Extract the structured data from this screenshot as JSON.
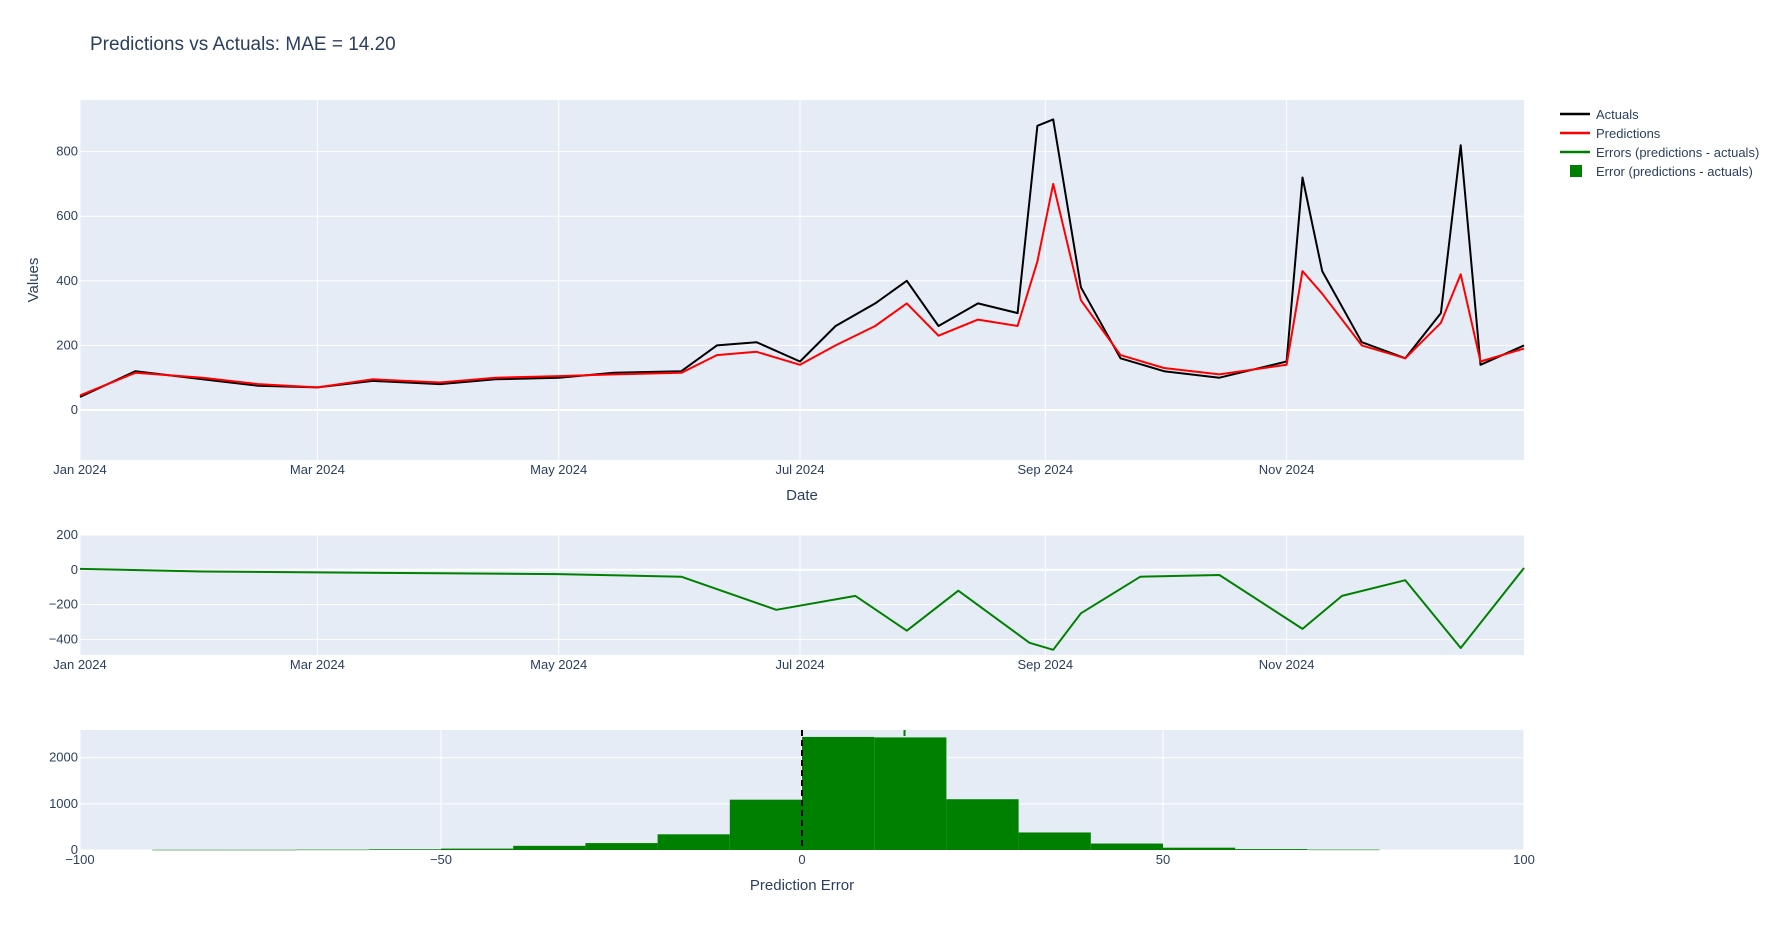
{
  "title": "Predictions vs Actuals: MAE = 14.20",
  "colors": {
    "actuals": "#000000",
    "predictions": "#ff0000",
    "errors": "#008000",
    "plot_bg": "#e5ecf6",
    "text": "#2a3f5f"
  },
  "legend": [
    {
      "label": "Actuals",
      "type": "line",
      "color": "#000000"
    },
    {
      "label": "Predictions",
      "type": "line",
      "color": "#ff0000"
    },
    {
      "label": "Errors (predictions - actuals)",
      "type": "line",
      "color": "#008000"
    },
    {
      "label": "Error (predictions - actuals)",
      "type": "square",
      "color": "#008000"
    }
  ],
  "chart_data": [
    {
      "type": "line",
      "xlabel": "Date",
      "ylabel": "Values",
      "x_range": [
        "2024-01-01",
        "2024-12-31"
      ],
      "x_ticks": [
        "Jan 2024",
        "Mar 2024",
        "May 2024",
        "Jul 2024",
        "Sep 2024",
        "Nov 2024"
      ],
      "x_tick_dates": [
        "2024-01-01",
        "2024-03-01",
        "2024-05-01",
        "2024-07-01",
        "2024-09-01",
        "2024-11-01"
      ],
      "ylim": [
        -155,
        960
      ],
      "y_ticks": [
        0,
        200,
        400,
        600,
        800
      ],
      "grid": true,
      "legend_position": "top-right",
      "series": [
        {
          "name": "Actuals",
          "x": [
            "2024-01-01",
            "2024-01-15",
            "2024-02-01",
            "2024-02-15",
            "2024-03-01",
            "2024-03-15",
            "2024-04-01",
            "2024-04-15",
            "2024-05-01",
            "2024-05-15",
            "2024-06-01",
            "2024-06-10",
            "2024-06-20",
            "2024-07-01",
            "2024-07-10",
            "2024-07-20",
            "2024-07-28",
            "2024-08-05",
            "2024-08-15",
            "2024-08-25",
            "2024-08-30",
            "2024-09-03",
            "2024-09-10",
            "2024-09-20",
            "2024-10-01",
            "2024-10-15",
            "2024-11-01",
            "2024-11-05",
            "2024-11-10",
            "2024-11-20",
            "2024-12-01",
            "2024-12-10",
            "2024-12-15",
            "2024-12-20",
            "2024-12-31"
          ],
          "values": [
            40,
            120,
            95,
            75,
            70,
            90,
            80,
            95,
            100,
            115,
            120,
            200,
            210,
            150,
            260,
            330,
            400,
            260,
            330,
            300,
            880,
            900,
            380,
            160,
            120,
            100,
            150,
            720,
            430,
            210,
            160,
            300,
            820,
            140,
            200
          ]
        },
        {
          "name": "Predictions",
          "x": [
            "2024-01-01",
            "2024-01-15",
            "2024-02-01",
            "2024-02-15",
            "2024-03-01",
            "2024-03-15",
            "2024-04-01",
            "2024-04-15",
            "2024-05-01",
            "2024-05-15",
            "2024-06-01",
            "2024-06-10",
            "2024-06-20",
            "2024-07-01",
            "2024-07-10",
            "2024-07-20",
            "2024-07-28",
            "2024-08-05",
            "2024-08-15",
            "2024-08-25",
            "2024-08-30",
            "2024-09-03",
            "2024-09-10",
            "2024-09-20",
            "2024-10-01",
            "2024-10-15",
            "2024-11-01",
            "2024-11-05",
            "2024-11-10",
            "2024-11-20",
            "2024-12-01",
            "2024-12-10",
            "2024-12-15",
            "2024-12-20",
            "2024-12-31"
          ],
          "values": [
            45,
            115,
            100,
            80,
            70,
            95,
            85,
            100,
            105,
            110,
            115,
            170,
            180,
            140,
            200,
            260,
            330,
            230,
            280,
            260,
            460,
            700,
            340,
            170,
            130,
            110,
            140,
            430,
            360,
            200,
            160,
            270,
            420,
            150,
            190
          ]
        }
      ]
    },
    {
      "type": "line",
      "x_range": [
        "2024-01-01",
        "2024-12-31"
      ],
      "x_ticks": [
        "Jan 2024",
        "Mar 2024",
        "May 2024",
        "Jul 2024",
        "Sep 2024",
        "Nov 2024"
      ],
      "x_tick_dates": [
        "2024-01-01",
        "2024-03-01",
        "2024-05-01",
        "2024-07-01",
        "2024-09-01",
        "2024-11-01"
      ],
      "ylim": [
        -490,
        200
      ],
      "y_ticks": [
        -400,
        -200,
        0,
        200
      ],
      "grid": true,
      "series": [
        {
          "name": "Errors (predictions - actuals)",
          "x": [
            "2024-01-01",
            "2024-02-01",
            "2024-03-01",
            "2024-04-01",
            "2024-05-01",
            "2024-06-01",
            "2024-06-25",
            "2024-07-15",
            "2024-07-28",
            "2024-08-10",
            "2024-08-28",
            "2024-09-03",
            "2024-09-10",
            "2024-09-25",
            "2024-10-15",
            "2024-11-05",
            "2024-11-15",
            "2024-12-01",
            "2024-12-15",
            "2024-12-31"
          ],
          "values": [
            5,
            -10,
            -15,
            -20,
            -25,
            -40,
            -230,
            -150,
            -350,
            -120,
            -420,
            -460,
            -250,
            -40,
            -30,
            -340,
            -150,
            -60,
            -450,
            10
          ]
        }
      ]
    },
    {
      "type": "bar",
      "xlabel": "Prediction Error",
      "xlim": [
        -100,
        100
      ],
      "x_ticks": [
        -100,
        -50,
        0,
        50,
        100
      ],
      "ylim": [
        0,
        2600
      ],
      "y_ticks": [
        0,
        1000,
        2000
      ],
      "grid": true,
      "bin_width": 10,
      "bins": [
        -90,
        -80,
        -70,
        -60,
        -50,
        -40,
        -30,
        -20,
        -10,
        0,
        10,
        20,
        30,
        40,
        50,
        60,
        70
      ],
      "counts": [
        5,
        5,
        8,
        15,
        30,
        90,
        150,
        340,
        1090,
        2450,
        2440,
        1100,
        380,
        140,
        50,
        20,
        8
      ],
      "vlines": [
        {
          "x": 0,
          "color": "#000000",
          "style": "dashed"
        },
        {
          "x": 14.2,
          "color": "#008000",
          "style": "dashed"
        }
      ]
    }
  ]
}
